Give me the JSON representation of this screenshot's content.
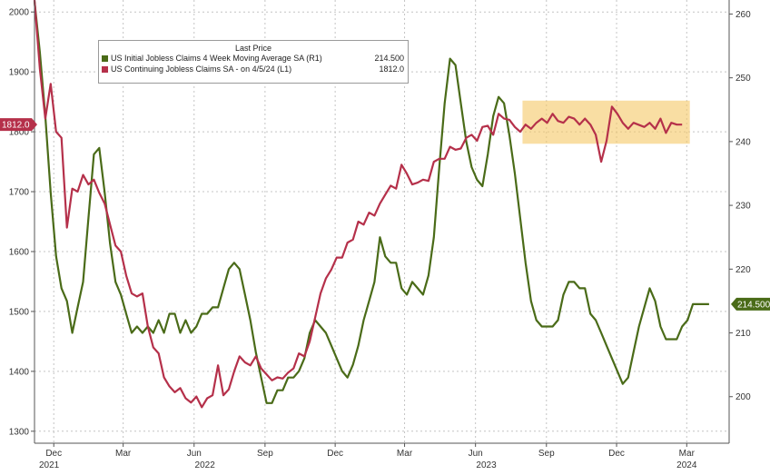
{
  "chart_data": {
    "type": "line",
    "legend": {
      "title": "Last Price",
      "placement": "top-left"
    },
    "series": [
      {
        "name": "US Initial Jobless Claims 4 Week Moving Average SA (R1)",
        "last_value": "214.500",
        "axis": "right",
        "color": "#4a6b18",
        "points": [
          [
            "2021-11-06",
            262
          ],
          [
            "2021-11-13",
            254
          ],
          [
            "2021-11-20",
            244
          ],
          [
            "2021-11-27",
            232
          ],
          [
            "2021-12-04",
            222
          ],
          [
            "2021-12-11",
            217
          ],
          [
            "2021-12-18",
            215
          ],
          [
            "2021-12-25",
            210
          ],
          [
            "2022-01-01",
            214
          ],
          [
            "2022-01-08",
            218
          ],
          [
            "2022-01-15",
            228
          ],
          [
            "2022-01-22",
            238
          ],
          [
            "2022-01-29",
            239
          ],
          [
            "2022-02-05",
            232
          ],
          [
            "2022-02-12",
            224
          ],
          [
            "2022-02-19",
            218
          ],
          [
            "2022-02-26",
            216
          ],
          [
            "2022-03-05",
            213
          ],
          [
            "2022-03-12",
            210
          ],
          [
            "2022-03-19",
            211
          ],
          [
            "2022-03-26",
            210
          ],
          [
            "2022-04-02",
            211
          ],
          [
            "2022-04-09",
            210
          ],
          [
            "2022-04-16",
            212
          ],
          [
            "2022-04-23",
            210
          ],
          [
            "2022-04-30",
            213
          ],
          [
            "2022-05-07",
            213
          ],
          [
            "2022-05-14",
            210
          ],
          [
            "2022-05-21",
            212
          ],
          [
            "2022-05-28",
            210
          ],
          [
            "2022-06-04",
            211
          ],
          [
            "2022-06-11",
            213
          ],
          [
            "2022-06-18",
            213
          ],
          [
            "2022-06-25",
            214
          ],
          [
            "2022-07-02",
            214
          ],
          [
            "2022-07-09",
            217
          ],
          [
            "2022-07-16",
            220
          ],
          [
            "2022-07-23",
            221
          ],
          [
            "2022-07-30",
            220
          ],
          [
            "2022-08-06",
            216
          ],
          [
            "2022-08-13",
            212
          ],
          [
            "2022-08-20",
            207
          ],
          [
            "2022-08-27",
            203
          ],
          [
            "2022-09-03",
            199
          ],
          [
            "2022-09-10",
            199
          ],
          [
            "2022-09-17",
            201
          ],
          [
            "2022-09-24",
            201
          ],
          [
            "2022-10-01",
            203
          ],
          [
            "2022-10-08",
            203
          ],
          [
            "2022-10-15",
            204
          ],
          [
            "2022-10-22",
            206
          ],
          [
            "2022-10-29",
            210
          ],
          [
            "2022-11-05",
            212
          ],
          [
            "2022-11-12",
            211
          ],
          [
            "2022-11-19",
            210
          ],
          [
            "2022-11-26",
            208
          ],
          [
            "2022-12-03",
            206
          ],
          [
            "2022-12-10",
            204
          ],
          [
            "2022-12-17",
            203
          ],
          [
            "2022-12-24",
            205
          ],
          [
            "2022-12-31",
            208
          ],
          [
            "2023-01-07",
            212
          ],
          [
            "2023-01-14",
            215
          ],
          [
            "2023-01-21",
            218
          ],
          [
            "2023-01-28",
            225
          ],
          [
            "2023-02-04",
            222
          ],
          [
            "2023-02-11",
            221
          ],
          [
            "2023-02-18",
            221
          ],
          [
            "2023-02-25",
            217
          ],
          [
            "2023-03-04",
            216
          ],
          [
            "2023-03-11",
            218
          ],
          [
            "2023-03-18",
            217
          ],
          [
            "2023-03-25",
            216
          ],
          [
            "2023-04-01",
            219
          ],
          [
            "2023-04-08",
            225
          ],
          [
            "2023-04-15",
            236
          ],
          [
            "2023-04-22",
            246
          ],
          [
            "2023-04-29",
            253
          ],
          [
            "2023-05-06",
            252
          ],
          [
            "2023-05-13",
            246
          ],
          [
            "2023-05-20",
            240
          ],
          [
            "2023-05-27",
            236
          ],
          [
            "2023-06-03",
            234
          ],
          [
            "2023-06-10",
            233
          ],
          [
            "2023-06-17",
            238
          ],
          [
            "2023-06-24",
            244
          ],
          [
            "2023-07-01",
            247
          ],
          [
            "2023-07-08",
            246
          ],
          [
            "2023-07-15",
            241
          ],
          [
            "2023-07-22",
            235
          ],
          [
            "2023-07-29",
            228
          ],
          [
            "2023-08-05",
            221
          ],
          [
            "2023-08-12",
            215
          ],
          [
            "2023-08-19",
            212
          ],
          [
            "2023-08-26",
            211
          ],
          [
            "2023-09-02",
            211
          ],
          [
            "2023-09-09",
            211
          ],
          [
            "2023-09-16",
            212
          ],
          [
            "2023-09-23",
            216
          ],
          [
            "2023-09-30",
            218
          ],
          [
            "2023-10-07",
            218
          ],
          [
            "2023-10-14",
            217
          ],
          [
            "2023-10-21",
            217
          ],
          [
            "2023-10-28",
            213
          ],
          [
            "2023-11-04",
            212
          ],
          [
            "2023-11-11",
            210
          ],
          [
            "2023-11-18",
            208
          ],
          [
            "2023-11-25",
            206
          ],
          [
            "2023-12-02",
            204
          ],
          [
            "2023-12-09",
            202
          ],
          [
            "2023-12-16",
            203
          ],
          [
            "2023-12-23",
            207
          ],
          [
            "2023-12-30",
            211
          ],
          [
            "2024-01-06",
            214
          ],
          [
            "2024-01-13",
            217
          ],
          [
            "2024-01-20",
            215
          ],
          [
            "2024-01-27",
            211
          ],
          [
            "2024-02-03",
            209
          ],
          [
            "2024-02-10",
            209
          ],
          [
            "2024-02-17",
            209
          ],
          [
            "2024-02-24",
            211
          ],
          [
            "2024-03-02",
            212
          ],
          [
            "2024-03-09",
            214.5
          ],
          [
            "2024-03-16",
            214.5
          ],
          [
            "2024-03-23",
            214.5
          ],
          [
            "2024-03-30",
            214.5
          ]
        ]
      },
      {
        "name": "US Continuing Jobless Claims SA - on 4/5/24 (L1)",
        "last_value": "1812.0",
        "axis": "left",
        "color": "#b5304a",
        "points": [
          [
            "2021-11-06",
            2020
          ],
          [
            "2021-11-13",
            1905
          ],
          [
            "2021-11-20",
            1822
          ],
          [
            "2021-11-27",
            1880
          ],
          [
            "2021-12-04",
            1800
          ],
          [
            "2021-12-11",
            1790
          ],
          [
            "2021-12-18",
            1640
          ],
          [
            "2021-12-25",
            1705
          ],
          [
            "2022-01-01",
            1700
          ],
          [
            "2022-01-08",
            1728
          ],
          [
            "2022-01-15",
            1712
          ],
          [
            "2022-01-22",
            1720
          ],
          [
            "2022-01-29",
            1698
          ],
          [
            "2022-02-05",
            1680
          ],
          [
            "2022-02-12",
            1645
          ],
          [
            "2022-02-19",
            1610
          ],
          [
            "2022-02-26",
            1600
          ],
          [
            "2022-03-05",
            1560
          ],
          [
            "2022-03-12",
            1530
          ],
          [
            "2022-03-19",
            1525
          ],
          [
            "2022-03-26",
            1530
          ],
          [
            "2022-04-02",
            1475
          ],
          [
            "2022-04-09",
            1440
          ],
          [
            "2022-04-16",
            1430
          ],
          [
            "2022-04-23",
            1390
          ],
          [
            "2022-04-30",
            1375
          ],
          [
            "2022-05-07",
            1365
          ],
          [
            "2022-05-14",
            1372
          ],
          [
            "2022-05-21",
            1355
          ],
          [
            "2022-05-28",
            1348
          ],
          [
            "2022-06-04",
            1358
          ],
          [
            "2022-06-11",
            1340
          ],
          [
            "2022-06-18",
            1355
          ],
          [
            "2022-06-25",
            1360
          ],
          [
            "2022-07-02",
            1410
          ],
          [
            "2022-07-09",
            1360
          ],
          [
            "2022-07-16",
            1370
          ],
          [
            "2022-07-23",
            1400
          ],
          [
            "2022-07-30",
            1425
          ],
          [
            "2022-08-06",
            1415
          ],
          [
            "2022-08-13",
            1410
          ],
          [
            "2022-08-20",
            1425
          ],
          [
            "2022-08-27",
            1405
          ],
          [
            "2022-09-03",
            1395
          ],
          [
            "2022-09-10",
            1385
          ],
          [
            "2022-09-17",
            1390
          ],
          [
            "2022-09-24",
            1388
          ],
          [
            "2022-10-01",
            1398
          ],
          [
            "2022-10-08",
            1405
          ],
          [
            "2022-10-15",
            1430
          ],
          [
            "2022-10-22",
            1425
          ],
          [
            "2022-10-29",
            1450
          ],
          [
            "2022-11-05",
            1490
          ],
          [
            "2022-11-12",
            1530
          ],
          [
            "2022-11-19",
            1555
          ],
          [
            "2022-11-26",
            1570
          ],
          [
            "2022-12-03",
            1590
          ],
          [
            "2022-12-10",
            1590
          ],
          [
            "2022-12-17",
            1615
          ],
          [
            "2022-12-24",
            1620
          ],
          [
            "2022-12-31",
            1650
          ],
          [
            "2023-01-07",
            1645
          ],
          [
            "2023-01-14",
            1665
          ],
          [
            "2023-01-21",
            1660
          ],
          [
            "2023-01-28",
            1680
          ],
          [
            "2023-02-04",
            1695
          ],
          [
            "2023-02-11",
            1710
          ],
          [
            "2023-02-18",
            1705
          ],
          [
            "2023-02-25",
            1745
          ],
          [
            "2023-03-04",
            1730
          ],
          [
            "2023-03-11",
            1712
          ],
          [
            "2023-03-18",
            1715
          ],
          [
            "2023-03-25",
            1720
          ],
          [
            "2023-04-01",
            1718
          ],
          [
            "2023-04-08",
            1750
          ],
          [
            "2023-04-15",
            1755
          ],
          [
            "2023-04-22",
            1755
          ],
          [
            "2023-04-29",
            1775
          ],
          [
            "2023-05-06",
            1770
          ],
          [
            "2023-05-13",
            1772
          ],
          [
            "2023-05-20",
            1790
          ],
          [
            "2023-05-27",
            1795
          ],
          [
            "2023-06-03",
            1785
          ],
          [
            "2023-06-10",
            1808
          ],
          [
            "2023-06-17",
            1810
          ],
          [
            "2023-06-24",
            1795
          ],
          [
            "2023-07-01",
            1830
          ],
          [
            "2023-07-08",
            1822
          ],
          [
            "2023-07-15",
            1820
          ],
          [
            "2023-07-22",
            1808
          ],
          [
            "2023-07-29",
            1800
          ],
          [
            "2023-08-05",
            1812
          ],
          [
            "2023-08-12",
            1805
          ],
          [
            "2023-08-19",
            1815
          ],
          [
            "2023-08-26",
            1822
          ],
          [
            "2023-09-02",
            1815
          ],
          [
            "2023-09-09",
            1830
          ],
          [
            "2023-09-16",
            1818
          ],
          [
            "2023-09-23",
            1815
          ],
          [
            "2023-09-30",
            1825
          ],
          [
            "2023-10-07",
            1822
          ],
          [
            "2023-10-14",
            1812
          ],
          [
            "2023-10-21",
            1822
          ],
          [
            "2023-10-28",
            1812
          ],
          [
            "2023-11-04",
            1795
          ],
          [
            "2023-11-11",
            1750
          ],
          [
            "2023-11-18",
            1785
          ],
          [
            "2023-11-25",
            1842
          ],
          [
            "2023-12-02",
            1830
          ],
          [
            "2023-12-09",
            1815
          ],
          [
            "2023-12-16",
            1805
          ],
          [
            "2023-12-23",
            1815
          ],
          [
            "2024-01-06",
            1808
          ],
          [
            "2024-01-13",
            1815
          ],
          [
            "2024-01-20",
            1805
          ],
          [
            "2024-01-27",
            1822
          ],
          [
            "2024-02-03",
            1798
          ],
          [
            "2024-02-10",
            1815
          ],
          [
            "2024-02-17",
            1812
          ],
          [
            "2024-02-24",
            1812
          ]
        ]
      }
    ],
    "left_axis": {
      "ylim": [
        1280,
        2020
      ],
      "ticks": [
        "2000",
        "1900",
        "1800",
        "1700",
        "1600",
        "1500",
        "1400",
        "1300"
      ]
    },
    "right_axis": {
      "ylim": [
        192.7,
        262.2
      ],
      "ticks": [
        "260",
        "250",
        "240",
        "230",
        "220",
        "210",
        "200"
      ]
    },
    "x_axis": {
      "xlim": [
        "2021-11-06",
        "2024-04-25"
      ],
      "ticks": [
        {
          "date": "2021-12-01",
          "label": "Dec"
        },
        {
          "date": "2022-03-01",
          "label": "Mar"
        },
        {
          "date": "2022-06-01",
          "label": "Jun"
        },
        {
          "date": "2022-09-01",
          "label": "Sep"
        },
        {
          "date": "2022-12-01",
          "label": "Dec"
        },
        {
          "date": "2023-03-01",
          "label": "Mar"
        },
        {
          "date": "2023-06-01",
          "label": "Jun"
        },
        {
          "date": "2023-09-01",
          "label": "Sep"
        },
        {
          "date": "2023-12-01",
          "label": "Dec"
        },
        {
          "date": "2024-03-01",
          "label": "Mar"
        }
      ],
      "years": [
        {
          "date": "2021-11-25",
          "label": "2021"
        },
        {
          "date": "2022-06-15",
          "label": "2022"
        },
        {
          "date": "2023-06-15",
          "label": "2023"
        },
        {
          "date": "2024-03-01",
          "label": "2024"
        }
      ]
    },
    "highlight_box": {
      "x_from": "2023-08-01",
      "x_to": "2024-03-05",
      "left_y_from": 1780,
      "left_y_to": 1852,
      "color": "#f5c866"
    },
    "grid": true,
    "last_value_tags": {
      "left": {
        "label": "1812.0",
        "value": 1812,
        "color": "#b5304a"
      },
      "right": {
        "label": "214.500",
        "value": 214.5,
        "color": "#4a6b18"
      }
    }
  }
}
